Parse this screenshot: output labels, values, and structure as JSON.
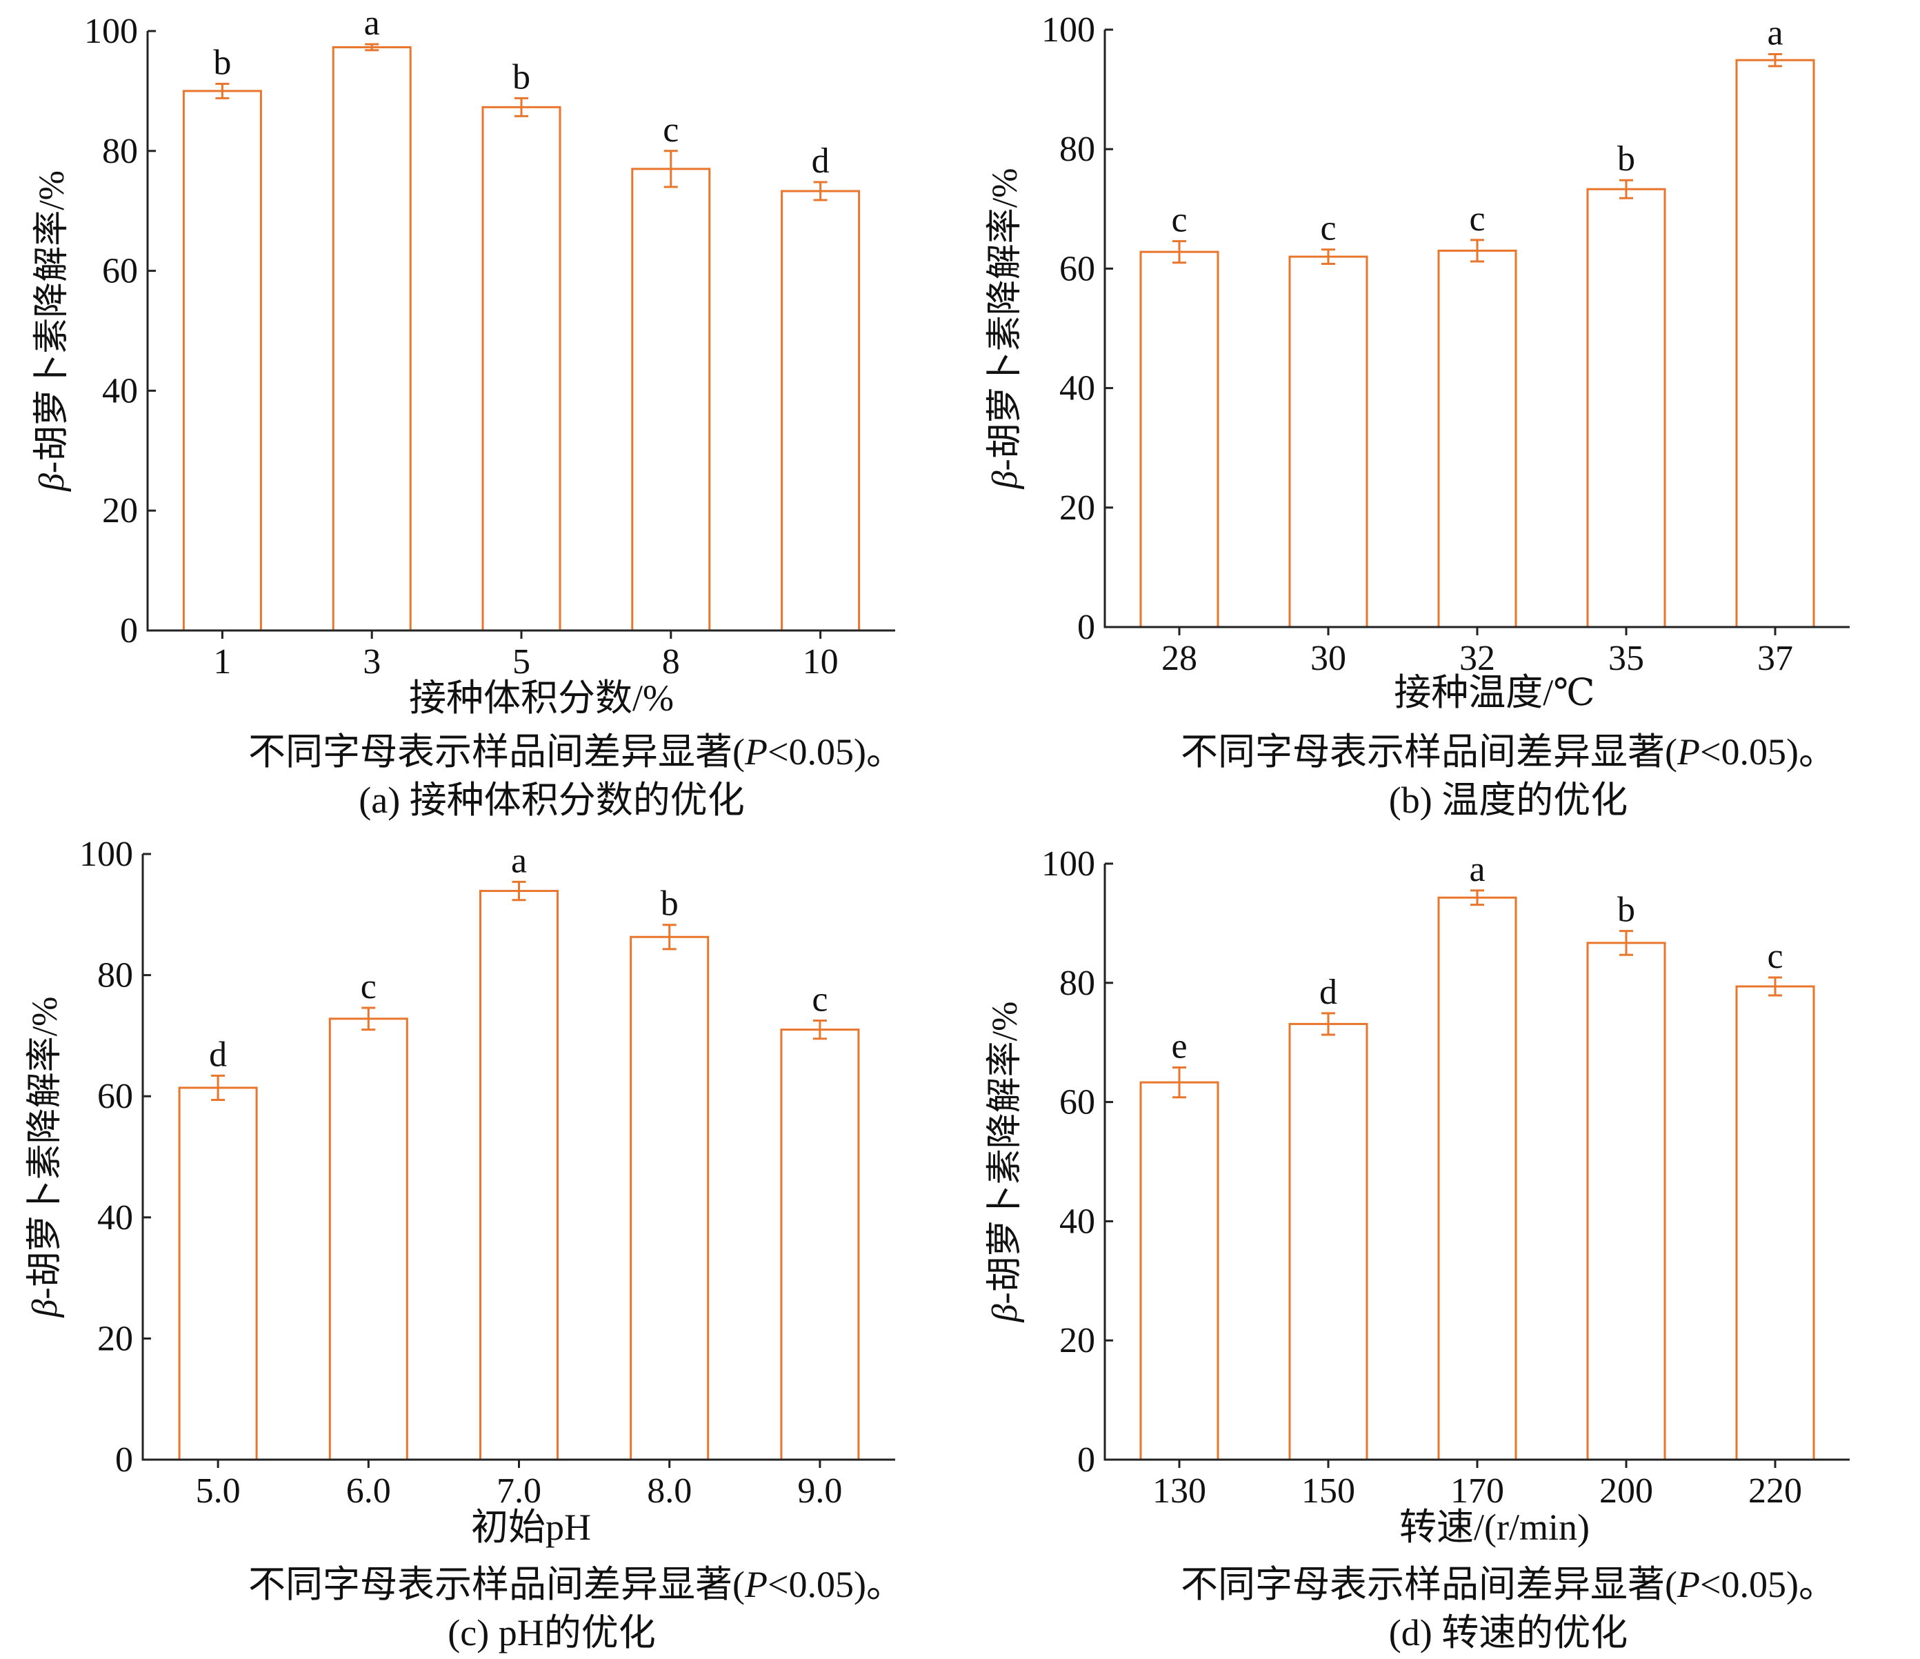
{
  "colors": {
    "bar_stroke": "#e8762d",
    "axis": "#222222"
  },
  "ylabel_prefix": "β",
  "ylabel_rest": "-胡萝卜素降解率/%",
  "note_before": "不同字母表示样品间差异显著(",
  "note_p": "P",
  "note_after": "<0.05)。",
  "chart_data": [
    {
      "type": "bar",
      "categories": [
        "1",
        "3",
        "5",
        "8",
        "10"
      ],
      "values": [
        90,
        97.3,
        87.3,
        77,
        73.3
      ],
      "errors": [
        1.2,
        0.5,
        1.5,
        3,
        1.5
      ],
      "letters": [
        "b",
        "a",
        "b",
        "c",
        "d"
      ],
      "xlabel": "接种体积分数/%",
      "ylabel": "β-胡萝卜素降解率/%",
      "ylim": [
        0,
        100
      ],
      "yticks": [
        "0",
        "20",
        "40",
        "60",
        "80",
        "100"
      ],
      "caption": "(a) 接种体积分数的优化"
    },
    {
      "type": "bar",
      "categories": [
        "28",
        "30",
        "32",
        "35",
        "37"
      ],
      "values": [
        62.8,
        62,
        63,
        73.3,
        94.9
      ],
      "errors": [
        1.8,
        1.2,
        1.8,
        1.5,
        1
      ],
      "letters": [
        "c",
        "c",
        "c",
        "b",
        "a"
      ],
      "xlabel": "接种温度/℃",
      "ylabel": "β-胡萝卜素降解率/%",
      "ylim": [
        0,
        100
      ],
      "yticks": [
        "0",
        "20",
        "40",
        "60",
        "80",
        "100"
      ],
      "caption": "(b) 温度的优化"
    },
    {
      "type": "bar",
      "categories": [
        "5.0",
        "6.0",
        "7.0",
        "8.0",
        "9.0"
      ],
      "values": [
        61.4,
        72.8,
        93.9,
        86.3,
        71
      ],
      "errors": [
        2,
        1.8,
        1.5,
        2,
        1.5
      ],
      "letters": [
        "d",
        "c",
        "a",
        "b",
        "c"
      ],
      "xlabel": "初始pH",
      "ylabel": "β-胡萝卜素降解率/%",
      "ylim": [
        0,
        100
      ],
      "yticks": [
        "0",
        "20",
        "40",
        "60",
        "80",
        "100"
      ],
      "caption": "(c) pH的优化"
    },
    {
      "type": "bar",
      "categories": [
        "130",
        "150",
        "170",
        "200",
        "220"
      ],
      "values": [
        63.3,
        73.1,
        94.3,
        86.7,
        79.4
      ],
      "errors": [
        2.5,
        1.8,
        1.2,
        2,
        1.5
      ],
      "letters": [
        "e",
        "d",
        "a",
        "b",
        "c"
      ],
      "xlabel": "转速/(r/min)",
      "ylabel": "β-胡萝卜素降解率/%",
      "ylim": [
        0,
        100
      ],
      "yticks": [
        "0",
        "20",
        "40",
        "60",
        "80",
        "100"
      ],
      "caption": "(d) 转速的优化"
    }
  ]
}
